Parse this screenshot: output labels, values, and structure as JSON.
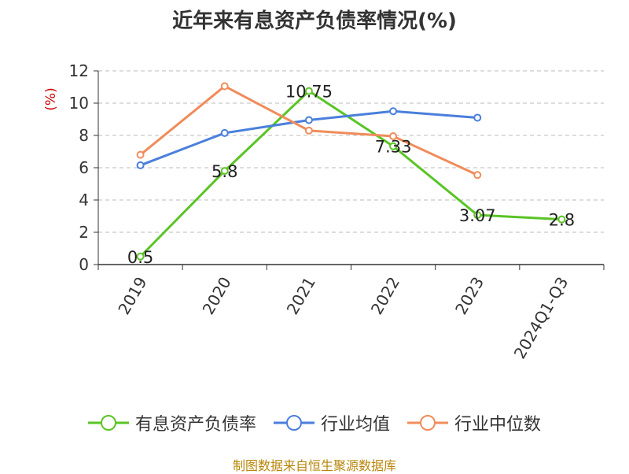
{
  "chart_data": {
    "type": "line",
    "title": "近年来有息资产负债率情况(%)",
    "ylabel": "(%)",
    "xlabel": "",
    "categories": [
      "2019",
      "2020",
      "2021",
      "2022",
      "2023",
      "2024Q1-Q3"
    ],
    "ylim": [
      0,
      12
    ],
    "yticks": [
      0,
      2,
      4,
      6,
      8,
      10,
      12
    ],
    "grid": true,
    "legend_position": "bottom",
    "series": [
      {
        "name": "有息资产负债率",
        "color": "#5ac426",
        "values": [
          0.5,
          5.8,
          10.75,
          7.33,
          3.07,
          2.8
        ],
        "data_labels": [
          "0.5",
          "5.8",
          "10.75",
          "7.33",
          "3.07",
          "2.8"
        ]
      },
      {
        "name": "行业均值",
        "color": "#4a7fdc",
        "values": [
          6.15,
          8.15,
          8.95,
          9.5,
          9.1,
          null
        ]
      },
      {
        "name": "行业中位数",
        "color": "#f08c5a",
        "values": [
          6.8,
          11.05,
          8.3,
          7.95,
          5.55,
          null
        ]
      }
    ]
  },
  "source": "制图数据来自恒生聚源数据库"
}
